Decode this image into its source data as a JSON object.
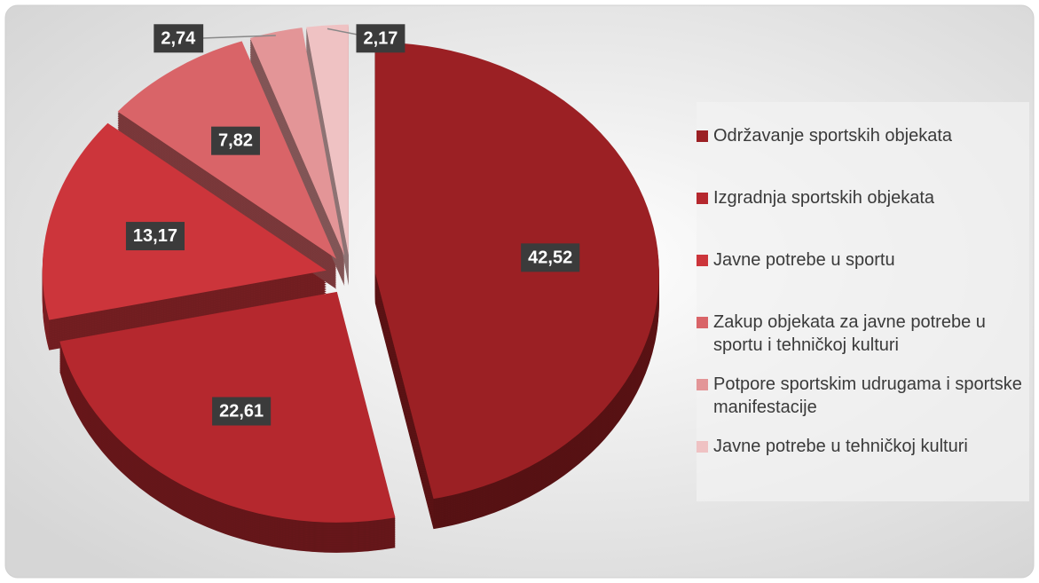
{
  "chart_data": {
    "type": "pie",
    "categories": [
      "Održavanje sportskih objekata",
      "Izgradnja sportskih objekata",
      "Javne potrebe u sportu",
      "Zakup objekata za javne potrebe u sportu i tehničkoj kulturi",
      "Potpore sportskim udrugama i sportske manifestacije",
      "Javne potrebe u tehničkoj kulturi"
    ],
    "values": [
      42.52,
      22.61,
      13.17,
      7.82,
      2.74,
      2.17
    ],
    "value_labels": [
      "42,52",
      "22,61",
      "13,17",
      "7,82",
      "2,74",
      "2,17"
    ],
    "colors": [
      "#9b2024",
      "#b5282e",
      "#cc353b",
      "#d96468",
      "#e39597",
      "#efc2c3"
    ],
    "legend": "right"
  }
}
